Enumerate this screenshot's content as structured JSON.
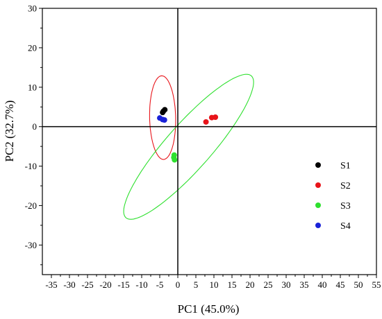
{
  "chart_data": {
    "type": "scatter",
    "xlabel": "PC1 (45.0%)",
    "ylabel": "PC2 (32.7%)",
    "xlim": [
      -37.5,
      55
    ],
    "ylim": [
      -37.5,
      30
    ],
    "x_ticks": [
      -35,
      -30,
      -25,
      -20,
      -15,
      -10,
      -5,
      0,
      5,
      10,
      15,
      20,
      25,
      30,
      35,
      40,
      45,
      50,
      55
    ],
    "y_ticks": [
      -30,
      -20,
      -10,
      0,
      10,
      20,
      30
    ],
    "zero_lines": true,
    "grid": false,
    "legend_position": "right",
    "series": [
      {
        "name": "S1",
        "color": "#000000",
        "points": [
          [
            -4.0,
            3.9
          ],
          [
            -3.6,
            4.3
          ],
          [
            -4.2,
            3.6
          ]
        ]
      },
      {
        "name": "S2",
        "color": "#e8141a",
        "points": [
          [
            7.8,
            1.2
          ],
          [
            9.4,
            2.3
          ],
          [
            10.4,
            2.4
          ]
        ]
      },
      {
        "name": "S3",
        "color": "#2ee02e",
        "points": [
          [
            -1.0,
            -7.2
          ],
          [
            -0.9,
            -8.4
          ],
          [
            -1.1,
            -7.8
          ]
        ]
      },
      {
        "name": "S4",
        "color": "#1a22d8",
        "points": [
          [
            -5.0,
            2.2
          ],
          [
            -4.2,
            1.8
          ],
          [
            -3.7,
            1.7
          ]
        ]
      }
    ],
    "ellipses": [
      {
        "series": "S1",
        "color": "#e8141a",
        "center": [
          -4.2,
          2.3
        ],
        "rx": 10.6,
        "ry": 3.6,
        "angle_deg": -88.6
      },
      {
        "series": "S3",
        "color": "#2ee02e",
        "center": [
          3.0,
          -5.1
        ],
        "rx": 25.0,
        "ry": 6.0,
        "angle_deg": 45.7
      }
    ]
  }
}
